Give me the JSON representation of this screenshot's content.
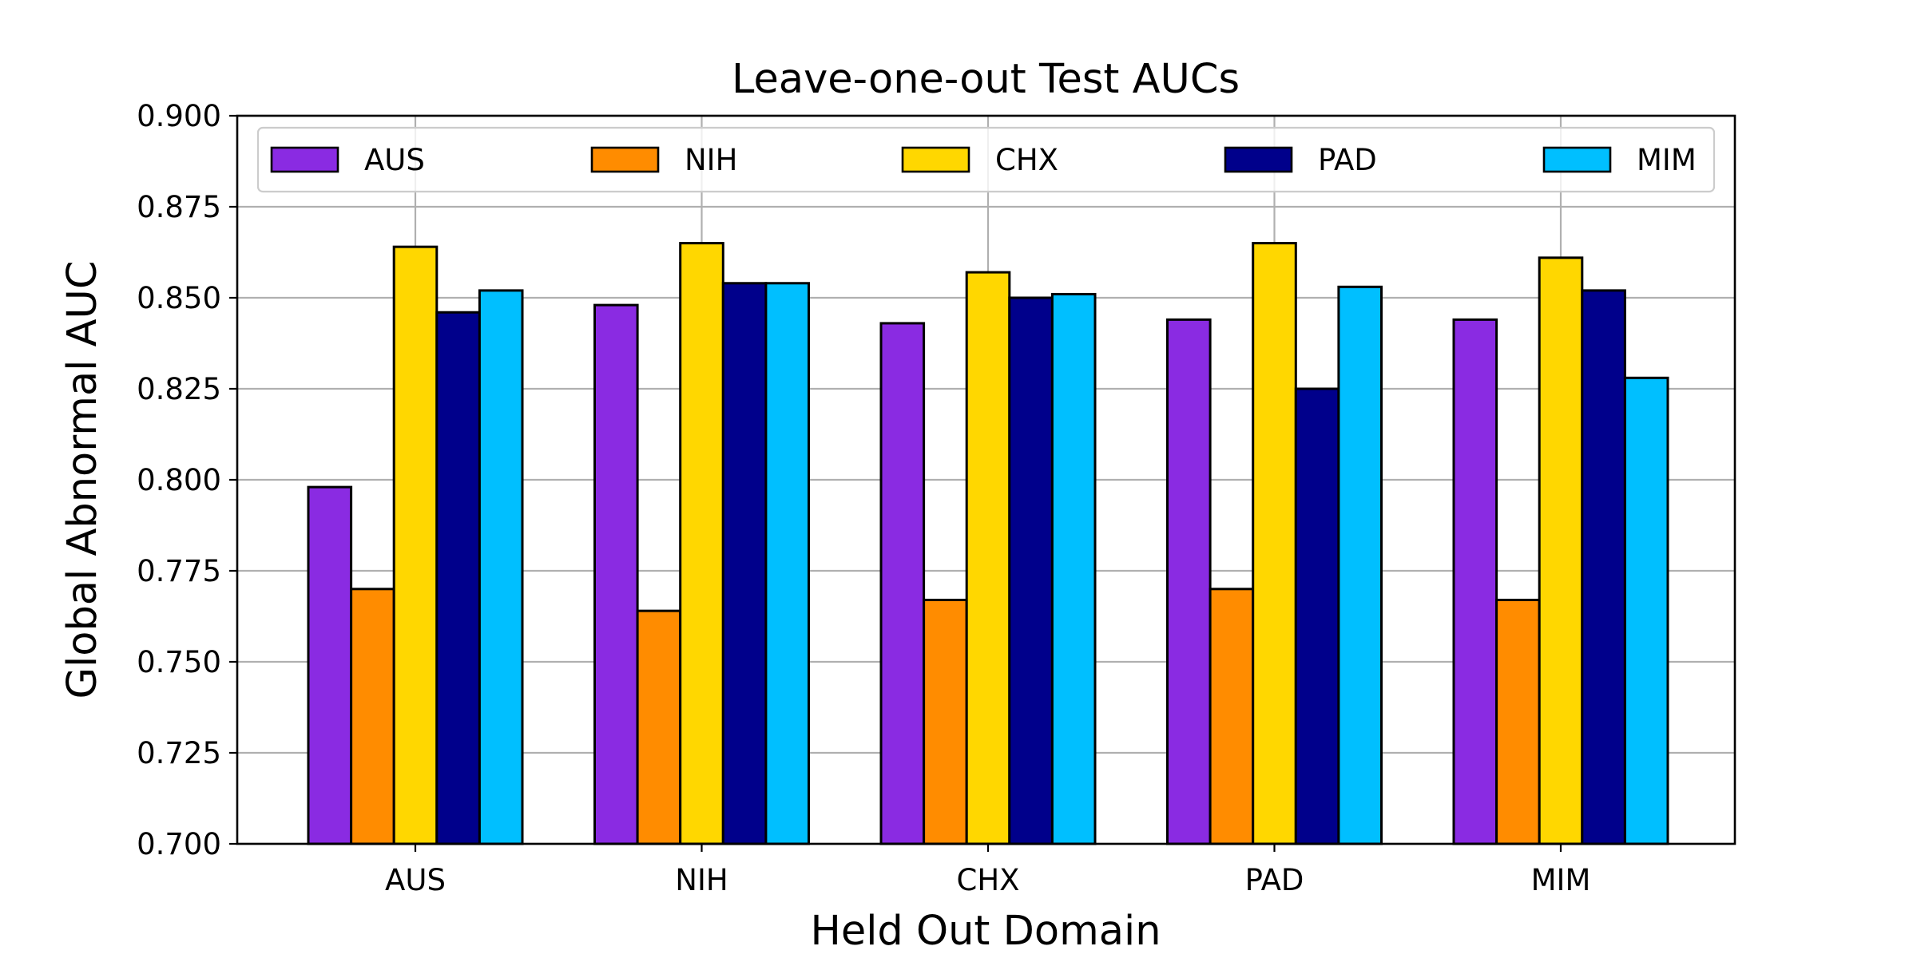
{
  "chart_data": {
    "type": "bar",
    "title": "Leave-one-out Test AUCs",
    "xlabel": "Held Out Domain",
    "ylabel": "Global Abnormal AUC",
    "categories": [
      "AUS",
      "NIH",
      "CHX",
      "PAD",
      "MIM"
    ],
    "ylim": [
      0.7,
      0.9
    ],
    "yticks": [
      "0.700",
      "0.725",
      "0.750",
      "0.775",
      "0.800",
      "0.825",
      "0.850",
      "0.875",
      "0.900"
    ],
    "grid": true,
    "legend_position": "top",
    "series": [
      {
        "name": "AUS",
        "color": "#8a2be2",
        "values": [
          0.798,
          0.848,
          0.843,
          0.844,
          0.844
        ]
      },
      {
        "name": "NIH",
        "color": "#ff8c00",
        "values": [
          0.77,
          0.764,
          0.767,
          0.77,
          0.767
        ]
      },
      {
        "name": "CHX",
        "color": "#ffd700",
        "values": [
          0.864,
          0.865,
          0.857,
          0.865,
          0.861
        ]
      },
      {
        "name": "PAD",
        "color": "#00008b",
        "values": [
          0.846,
          0.854,
          0.85,
          0.825,
          0.852
        ]
      },
      {
        "name": "MIM",
        "color": "#00bfff",
        "values": [
          0.852,
          0.854,
          0.851,
          0.853,
          0.828
        ]
      }
    ]
  }
}
